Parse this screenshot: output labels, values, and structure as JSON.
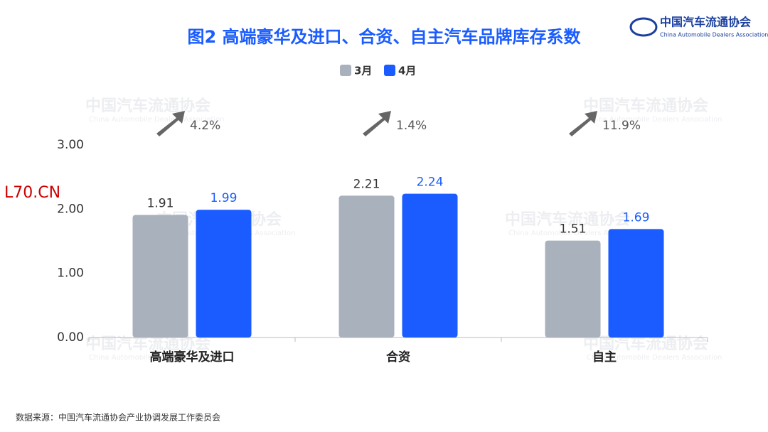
{
  "chart_data": {
    "type": "bar",
    "title": "图2  高端豪华及进口、合资、自主汽车品牌库存系数",
    "categories": [
      "高端豪华及进口",
      "合资",
      "自主"
    ],
    "series": [
      {
        "name": "3月",
        "color": "#a9b1bd",
        "values": [
          1.91,
          2.21,
          1.51
        ]
      },
      {
        "name": "4月",
        "color": "#1a5cff",
        "values": [
          1.99,
          2.24,
          1.69
        ]
      }
    ],
    "ylim": [
      0,
      3
    ],
    "yticks": [
      {
        "value": 0,
        "label": "0.00"
      },
      {
        "value": 1,
        "label": "1.00"
      },
      {
        "value": 2,
        "label": "2.00"
      },
      {
        "value": 3,
        "label": "3.00"
      }
    ],
    "change_labels": [
      "4.2%",
      "1.4%",
      "11.9%"
    ],
    "logo": {
      "name": "中国汽车流通协会",
      "english": "China Automobile Dealers Association"
    },
    "watermark": "L70.CN",
    "source": "数据来源：中国汽车流通协会产业协调发展工作委员会"
  }
}
